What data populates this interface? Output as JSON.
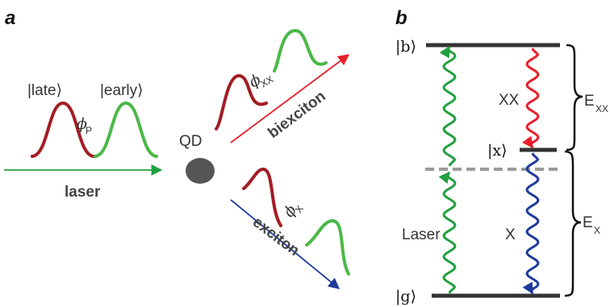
{
  "panel_a": {
    "letter": "a",
    "late_label": "|late⟩",
    "early_label": "|early⟩",
    "phase_p": "ϕ",
    "phase_p_sub": "P",
    "qd_label": "QD",
    "laser_label": "laser",
    "phase_xx": "ϕ",
    "phase_xx_sub": "XX",
    "biexciton_label": "biexciton",
    "phase_x": "ϕ",
    "phase_x_sub": "X",
    "exciton_label": "exciton"
  },
  "panel_b": {
    "letter": "b",
    "state_b": "|b⟩",
    "state_x": "|x⟩",
    "state_g": "|g⟩",
    "xx_label": "XX",
    "x_label": "X",
    "laser_label": "Laser",
    "e_xx": "E",
    "e_xx_sub": "XX",
    "e_x": "E",
    "e_x_sub": "X"
  },
  "colors": {
    "late_pulse": "#a31d24",
    "early_pulse": "#4cb848",
    "laser_arrow": "#22a040",
    "biexciton_arrow": "#e8202a",
    "exciton_arrow": "#1f3b9c",
    "qd": "#555555",
    "levels": "#333333",
    "dashed": "#9a9a9a"
  }
}
